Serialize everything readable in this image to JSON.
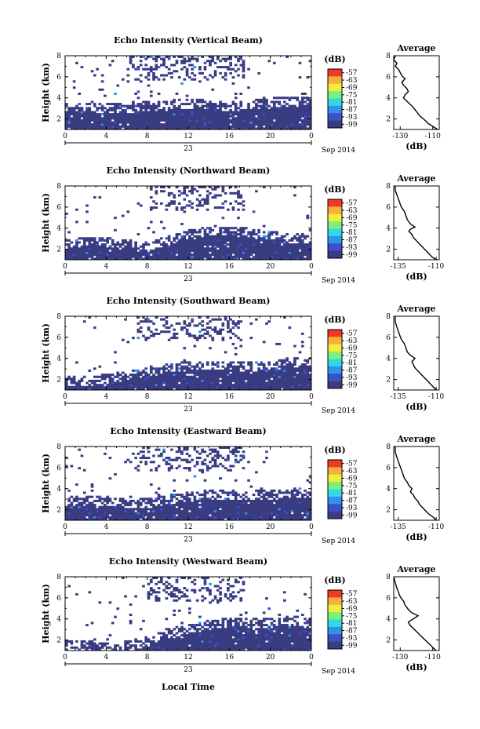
{
  "figure": {
    "xlabel": "Local Time",
    "date_label": "Sep 2014",
    "day_label": "23"
  },
  "colorbar": {
    "unit": "(dB)",
    "ticks": [
      "-57",
      "-63",
      "-69",
      "-75",
      "-81",
      "-87",
      "-93",
      "-99"
    ],
    "colors": [
      "#f03a27",
      "#f7ae3a",
      "#f0ef3a",
      "#7ef07a",
      "#31d8e6",
      "#3092e8",
      "#3c50c8",
      "#3a3c82"
    ],
    "range": [
      -99,
      -57
    ]
  },
  "chart_data": [
    {
      "type": "heatmap",
      "title": "Echo Intensity (Vertical Beam)",
      "ylabel": "Height (km)",
      "xticks": [
        "0",
        "4",
        "8",
        "12",
        "16",
        "20",
        "0"
      ],
      "yticks": [
        "2",
        "4",
        "6",
        "8"
      ],
      "xlim": [
        0,
        24
      ],
      "ylim": [
        1,
        8
      ],
      "mask": {
        "low_top": [
          3.1,
          3.1,
          3.0,
          2.9,
          3.2,
          3.3,
          3.4,
          3.3,
          3.2,
          3.3,
          3.5,
          3.6,
          3.5
        ],
        "upper_start_hour": 6
      },
      "average": {
        "title": "Average",
        "xlabel": "(dB)",
        "xticks": [
          "-130",
          "-110"
        ],
        "xlim": [
          -134,
          -106
        ],
        "yticks": [
          "2",
          "4",
          "6",
          "8"
        ],
        "ylim": [
          1,
          8
        ],
        "profile": [
          [
            -107,
            1.0
          ],
          [
            -110,
            1.3
          ],
          [
            -113,
            1.6
          ],
          [
            -115,
            1.9
          ],
          [
            -118,
            2.3
          ],
          [
            -120,
            2.7
          ],
          [
            -122,
            3.1
          ],
          [
            -124,
            3.4
          ],
          [
            -126,
            3.7
          ],
          [
            -128,
            4.0
          ],
          [
            -127,
            4.3
          ],
          [
            -125,
            4.6
          ],
          [
            -126,
            4.9
          ],
          [
            -128,
            5.2
          ],
          [
            -129,
            5.5
          ],
          [
            -127,
            5.8
          ],
          [
            -129,
            6.1
          ],
          [
            -130,
            6.4
          ],
          [
            -131,
            6.7
          ],
          [
            -133,
            7.0
          ],
          [
            -132,
            7.3
          ],
          [
            -134,
            7.6
          ],
          [
            -133,
            8.0
          ]
        ]
      }
    },
    {
      "type": "heatmap",
      "title": "Echo Intensity (Northward Beam)",
      "ylabel": "Height (km)",
      "xticks": [
        "0",
        "4",
        "8",
        "12",
        "16",
        "20",
        "0"
      ],
      "yticks": [
        "2",
        "4",
        "6",
        "8"
      ],
      "xlim": [
        0,
        24
      ],
      "ylim": [
        1,
        8
      ],
      "mask": {
        "low_top": [
          2.5,
          2.6,
          2.6,
          2.4,
          2.3,
          2.8,
          3.4,
          3.7,
          3.6,
          3.5,
          3.2,
          3.0,
          2.9
        ],
        "upper_start_hour": 8
      },
      "average": {
        "title": "Average",
        "xlabel": "(dB)",
        "xticks": [
          "-135",
          "-110"
        ],
        "xlim": [
          -138,
          -108
        ],
        "yticks": [
          "2",
          "4",
          "6",
          "8"
        ],
        "ylim": [
          1,
          8
        ],
        "profile": [
          [
            -110,
            1.0
          ],
          [
            -113,
            1.3
          ],
          [
            -115,
            1.6
          ],
          [
            -117,
            1.9
          ],
          [
            -119,
            2.2
          ],
          [
            -121,
            2.5
          ],
          [
            -123,
            2.8
          ],
          [
            -125,
            3.1
          ],
          [
            -126,
            3.4
          ],
          [
            -128,
            3.7
          ],
          [
            -127,
            3.9
          ],
          [
            -124,
            4.1
          ],
          [
            -127,
            4.4
          ],
          [
            -129,
            4.8
          ],
          [
            -130,
            5.2
          ],
          [
            -131,
            5.6
          ],
          [
            -133,
            6.0
          ],
          [
            -134,
            6.4
          ],
          [
            -135,
            6.8
          ],
          [
            -136,
            7.2
          ],
          [
            -137,
            7.6
          ],
          [
            -137,
            8.0
          ]
        ]
      }
    },
    {
      "type": "heatmap",
      "title": "Echo Intensity (Southward Beam)",
      "ylabel": "Height (km)",
      "xticks": [
        "0",
        "4",
        "8",
        "12",
        "16",
        "20",
        "0"
      ],
      "yticks": [
        "2",
        "4",
        "6",
        "8"
      ],
      "xlim": [
        0,
        24
      ],
      "ylim": [
        1,
        8
      ],
      "mask": {
        "low_top": [
          1.9,
          1.8,
          2.0,
          2.3,
          2.7,
          3.0,
          3.3,
          3.3,
          3.3,
          3.2,
          3.3,
          3.6,
          3.7
        ],
        "upper_start_hour": 7
      },
      "average": {
        "title": "Average",
        "xlabel": "(dB)",
        "xticks": [
          "-135",
          "-110"
        ],
        "xlim": [
          -138,
          -108
        ],
        "yticks": [
          "2",
          "4",
          "6",
          "8"
        ],
        "ylim": [
          1,
          8
        ],
        "profile": [
          [
            -110,
            1.0
          ],
          [
            -112,
            1.3
          ],
          [
            -114,
            1.6
          ],
          [
            -116,
            1.9
          ],
          [
            -118,
            2.2
          ],
          [
            -120,
            2.5
          ],
          [
            -122,
            2.8
          ],
          [
            -124,
            3.1
          ],
          [
            -125,
            3.4
          ],
          [
            -126,
            3.7
          ],
          [
            -124,
            4.0
          ],
          [
            -127,
            4.3
          ],
          [
            -129,
            4.6
          ],
          [
            -130,
            5.0
          ],
          [
            -131,
            5.4
          ],
          [
            -133,
            5.8
          ],
          [
            -134,
            6.2
          ],
          [
            -135,
            6.6
          ],
          [
            -136,
            7.0
          ],
          [
            -137,
            7.5
          ],
          [
            -137,
            8.0
          ]
        ]
      }
    },
    {
      "type": "heatmap",
      "title": "Echo Intensity (Eastward Beam)",
      "ylabel": "Height (km)",
      "xticks": [
        "0",
        "4",
        "8",
        "12",
        "16",
        "20",
        "0"
      ],
      "yticks": [
        "2",
        "4",
        "6",
        "8"
      ],
      "xlim": [
        0,
        24
      ],
      "ylim": [
        1,
        8
      ],
      "mask": {
        "low_top": [
          2.8,
          2.9,
          2.8,
          2.5,
          2.6,
          2.9,
          3.2,
          3.4,
          3.3,
          3.3,
          3.4,
          3.5,
          3.6
        ],
        "upper_start_hour": 7
      },
      "average": {
        "title": "Average",
        "xlabel": "(dB)",
        "xticks": [
          "-135",
          "-110"
        ],
        "xlim": [
          -138,
          -108
        ],
        "yticks": [
          "2",
          "4",
          "6",
          "8"
        ],
        "ylim": [
          1,
          8
        ],
        "profile": [
          [
            -110,
            1.0
          ],
          [
            -112,
            1.3
          ],
          [
            -115,
            1.6
          ],
          [
            -117,
            1.9
          ],
          [
            -119,
            2.2
          ],
          [
            -121,
            2.5
          ],
          [
            -122,
            2.8
          ],
          [
            -124,
            3.1
          ],
          [
            -125,
            3.4
          ],
          [
            -127,
            3.7
          ],
          [
            -126,
            4.0
          ],
          [
            -128,
            4.3
          ],
          [
            -129,
            4.6
          ],
          [
            -131,
            5.0
          ],
          [
            -132,
            5.4
          ],
          [
            -133,
            5.8
          ],
          [
            -134,
            6.2
          ],
          [
            -135,
            6.6
          ],
          [
            -136,
            7.0
          ],
          [
            -137,
            7.5
          ],
          [
            -137,
            8.0
          ]
        ]
      }
    },
    {
      "type": "heatmap",
      "title": "Echo Intensity (Westward Beam)",
      "ylabel": "Height (km)",
      "xticks": [
        "0",
        "4",
        "8",
        "12",
        "16",
        "20",
        "0"
      ],
      "yticks": [
        "2",
        "4",
        "6",
        "8"
      ],
      "xlim": [
        0,
        24
      ],
      "ylim": [
        1,
        8
      ],
      "mask": {
        "low_top": [
          1.4,
          1.5,
          1.3,
          1.4,
          1.8,
          2.6,
          3.0,
          3.4,
          3.6,
          3.5,
          3.6,
          3.8,
          3.6
        ],
        "upper_start_hour": 8
      },
      "average": {
        "title": "Average",
        "xlabel": "(dB)",
        "xticks": [
          "-130",
          "-110"
        ],
        "xlim": [
          -134,
          -106
        ],
        "yticks": [
          "2",
          "4",
          "6",
          "8"
        ],
        "ylim": [
          1,
          8
        ],
        "profile": [
          [
            -108,
            1.0
          ],
          [
            -110,
            1.3
          ],
          [
            -112,
            1.6
          ],
          [
            -114,
            1.9
          ],
          [
            -116,
            2.2
          ],
          [
            -118,
            2.5
          ],
          [
            -120,
            2.8
          ],
          [
            -122,
            3.1
          ],
          [
            -124,
            3.4
          ],
          [
            -125,
            3.7
          ],
          [
            -122,
            4.0
          ],
          [
            -119,
            4.3
          ],
          [
            -123,
            4.6
          ],
          [
            -125,
            4.9
          ],
          [
            -127,
            5.3
          ],
          [
            -128,
            5.7
          ],
          [
            -130,
            6.1
          ],
          [
            -131,
            6.5
          ],
          [
            -132,
            6.9
          ],
          [
            -133,
            7.4
          ],
          [
            -134,
            8.0
          ]
        ]
      }
    }
  ]
}
